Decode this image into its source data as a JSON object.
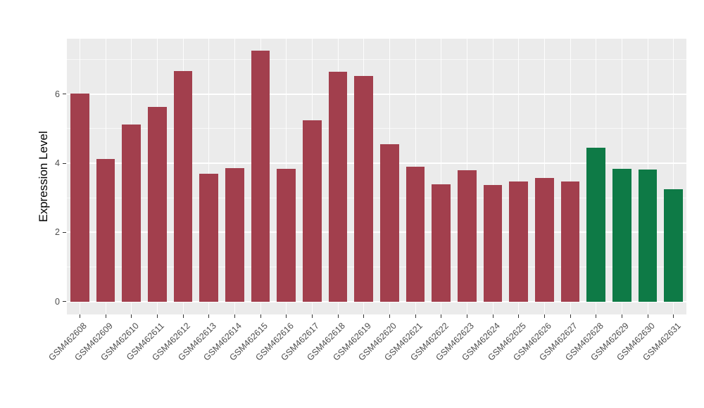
{
  "chart_data": {
    "type": "bar",
    "title": "",
    "xlabel": "",
    "ylabel": "Expression Level",
    "categories": [
      "GSM462608",
      "GSM462609",
      "GSM462610",
      "GSM462611",
      "GSM462612",
      "GSM462613",
      "GSM462614",
      "GSM462615",
      "GSM462616",
      "GSM462617",
      "GSM462618",
      "GSM462619",
      "GSM462620",
      "GSM462621",
      "GSM462622",
      "GSM462623",
      "GSM462624",
      "GSM462625",
      "GSM462626",
      "GSM462627",
      "GSM462628",
      "GSM462629",
      "GSM462630",
      "GSM462631"
    ],
    "values": [
      6.02,
      4.12,
      5.12,
      5.63,
      6.67,
      3.7,
      3.85,
      7.25,
      3.83,
      5.25,
      6.65,
      6.52,
      4.55,
      3.9,
      3.4,
      3.8,
      3.38,
      3.48,
      3.58,
      3.48,
      4.45,
      3.83,
      3.82,
      3.25
    ],
    "bar_groups": [
      "red",
      "red",
      "red",
      "red",
      "red",
      "red",
      "red",
      "red",
      "red",
      "red",
      "red",
      "red",
      "red",
      "red",
      "red",
      "red",
      "red",
      "red",
      "red",
      "red",
      "green",
      "green",
      "green",
      "green"
    ],
    "group_colors": {
      "red": "#A23F4D",
      "green": "#0E7A46"
    },
    "ylim": [
      -0.37,
      7.6
    ],
    "yticks_major": [
      0,
      2,
      4,
      6
    ],
    "yticks_minor": [
      1,
      3,
      5,
      7
    ],
    "grid": true,
    "legend": "none",
    "panel_bg": "#EBEBEB",
    "grid_color": "#FFFFFF",
    "tick_color": "#333333",
    "axis_text_color": "#4d4d4d"
  }
}
